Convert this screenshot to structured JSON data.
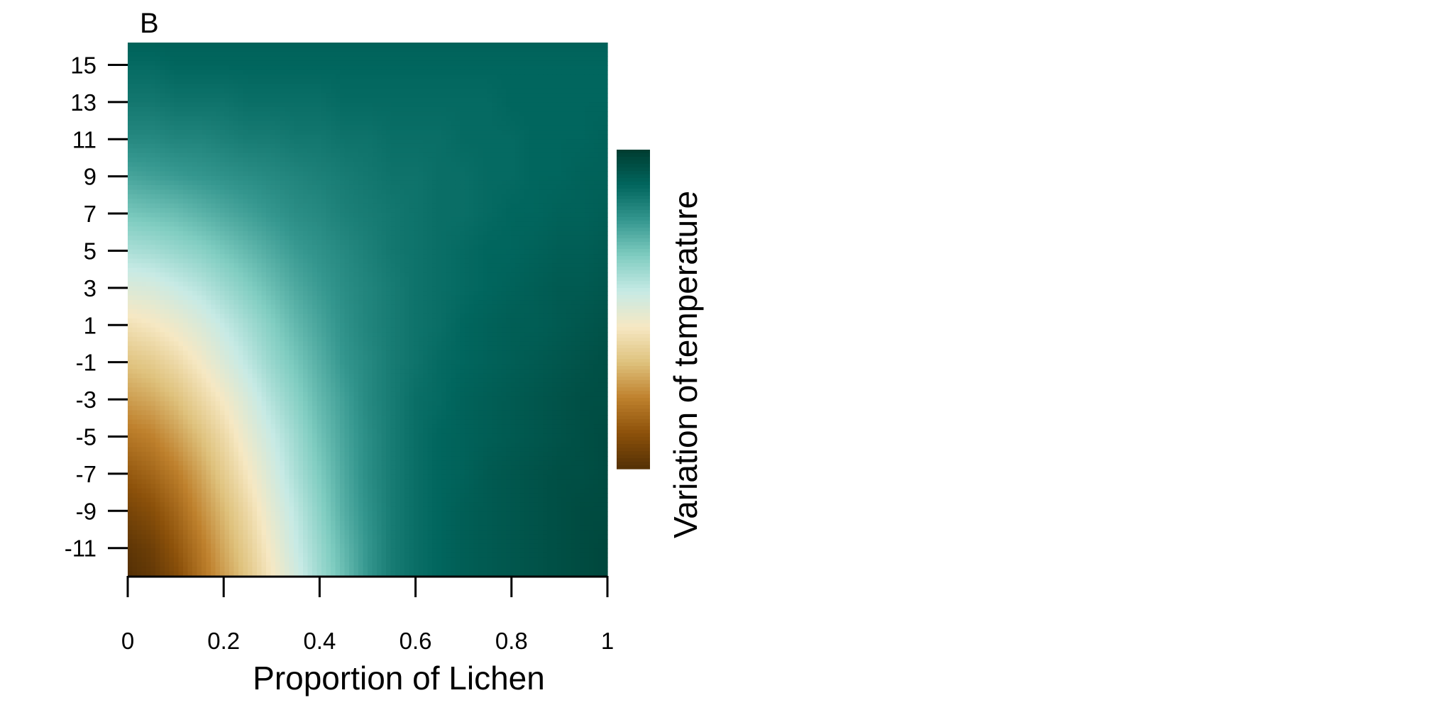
{
  "chart_data": {
    "type": "heatmap",
    "panel_label": "B",
    "title": "",
    "xlabel": "Proportion of Lichen",
    "ylabel": "",
    "colorbar_label": "Variation of temperature",
    "xlim": [
      0,
      1
    ],
    "ylim": [
      -12.5,
      16.2
    ],
    "x_ticks": [
      0,
      0.2,
      0.4,
      0.6,
      0.8,
      1
    ],
    "x_tick_labels": [
      "0",
      "0.2",
      "0.4",
      "0.6",
      "0.8",
      "1"
    ],
    "y_ticks": [
      -11,
      -9,
      -7,
      -5,
      -3,
      -1,
      1,
      3,
      5,
      7,
      9,
      11,
      13,
      15
    ],
    "y_tick_labels": [
      "-11",
      "-9",
      "-7",
      "-5",
      "-3",
      "-1",
      "1",
      "3",
      "5",
      "7",
      "9",
      "11",
      "13",
      "15"
    ],
    "colormap": [
      "#543005",
      "#8c510a",
      "#bf812d",
      "#dfc27d",
      "#f6e8c3",
      "#c7eae5",
      "#80cdc1",
      "#35978f",
      "#01665e",
      "#003c30"
    ],
    "colorbar_tick_labels": [],
    "x_grid": [
      0,
      0.05,
      0.1,
      0.15,
      0.2,
      0.25,
      0.3,
      0.35,
      0.4,
      0.45,
      0.5,
      0.55,
      0.6,
      0.65,
      0.7,
      0.75,
      0.8,
      0.85,
      0.9,
      0.95,
      1
    ],
    "y_grid": [
      -12.5,
      -11,
      -9,
      -7,
      -5,
      -3,
      -1,
      1,
      3,
      5,
      7,
      9,
      11,
      13,
      15,
      16.2
    ],
    "z_description": "relative shade 0 (dark brown) to 1 (dark teal)",
    "z": [
      [
        0.0,
        0.03,
        0.09,
        0.18,
        0.27,
        0.35,
        0.44,
        0.53,
        0.62,
        0.7,
        0.78,
        0.84,
        0.87,
        0.89,
        0.91,
        0.92,
        0.93,
        0.94,
        0.95,
        0.96,
        0.97
      ],
      [
        0.02,
        0.05,
        0.12,
        0.2,
        0.29,
        0.37,
        0.46,
        0.55,
        0.63,
        0.71,
        0.78,
        0.84,
        0.87,
        0.89,
        0.91,
        0.92,
        0.93,
        0.94,
        0.95,
        0.96,
        0.97
      ],
      [
        0.07,
        0.1,
        0.16,
        0.24,
        0.32,
        0.4,
        0.49,
        0.57,
        0.65,
        0.73,
        0.79,
        0.84,
        0.87,
        0.89,
        0.91,
        0.92,
        0.93,
        0.94,
        0.95,
        0.96,
        0.96
      ],
      [
        0.13,
        0.16,
        0.21,
        0.28,
        0.36,
        0.44,
        0.52,
        0.6,
        0.67,
        0.74,
        0.8,
        0.84,
        0.87,
        0.89,
        0.9,
        0.92,
        0.93,
        0.94,
        0.95,
        0.95,
        0.96
      ],
      [
        0.2,
        0.22,
        0.27,
        0.33,
        0.4,
        0.48,
        0.55,
        0.62,
        0.69,
        0.75,
        0.8,
        0.84,
        0.87,
        0.89,
        0.9,
        0.91,
        0.92,
        0.93,
        0.94,
        0.95,
        0.96
      ],
      [
        0.27,
        0.29,
        0.33,
        0.39,
        0.45,
        0.52,
        0.59,
        0.65,
        0.71,
        0.76,
        0.81,
        0.84,
        0.87,
        0.88,
        0.9,
        0.91,
        0.92,
        0.93,
        0.94,
        0.95,
        0.95
      ],
      [
        0.34,
        0.36,
        0.4,
        0.45,
        0.51,
        0.57,
        0.63,
        0.68,
        0.73,
        0.78,
        0.81,
        0.84,
        0.86,
        0.88,
        0.89,
        0.9,
        0.91,
        0.92,
        0.93,
        0.94,
        0.95
      ],
      [
        0.42,
        0.44,
        0.47,
        0.51,
        0.56,
        0.61,
        0.66,
        0.71,
        0.75,
        0.79,
        0.82,
        0.84,
        0.86,
        0.87,
        0.89,
        0.9,
        0.91,
        0.91,
        0.92,
        0.93,
        0.94
      ],
      [
        0.51,
        0.52,
        0.55,
        0.58,
        0.62,
        0.66,
        0.7,
        0.74,
        0.77,
        0.8,
        0.82,
        0.84,
        0.86,
        0.87,
        0.88,
        0.89,
        0.9,
        0.91,
        0.92,
        0.92,
        0.93
      ],
      [
        0.6,
        0.61,
        0.63,
        0.65,
        0.68,
        0.71,
        0.74,
        0.77,
        0.79,
        0.81,
        0.83,
        0.85,
        0.86,
        0.87,
        0.88,
        0.89,
        0.89,
        0.9,
        0.91,
        0.91,
        0.92
      ],
      [
        0.68,
        0.69,
        0.7,
        0.72,
        0.74,
        0.76,
        0.78,
        0.8,
        0.81,
        0.83,
        0.84,
        0.85,
        0.86,
        0.87,
        0.87,
        0.88,
        0.89,
        0.89,
        0.9,
        0.9,
        0.91
      ],
      [
        0.75,
        0.76,
        0.77,
        0.78,
        0.79,
        0.8,
        0.81,
        0.82,
        0.83,
        0.84,
        0.85,
        0.86,
        0.86,
        0.87,
        0.87,
        0.88,
        0.88,
        0.89,
        0.89,
        0.9,
        0.9
      ],
      [
        0.81,
        0.81,
        0.82,
        0.82,
        0.83,
        0.84,
        0.84,
        0.85,
        0.85,
        0.86,
        0.86,
        0.87,
        0.87,
        0.87,
        0.88,
        0.88,
        0.88,
        0.89,
        0.89,
        0.89,
        0.9
      ],
      [
        0.85,
        0.85,
        0.86,
        0.86,
        0.86,
        0.87,
        0.87,
        0.87,
        0.87,
        0.88,
        0.88,
        0.88,
        0.88,
        0.88,
        0.88,
        0.88,
        0.89,
        0.89,
        0.89,
        0.89,
        0.89
      ],
      [
        0.88,
        0.88,
        0.89,
        0.89,
        0.89,
        0.89,
        0.89,
        0.89,
        0.89,
        0.89,
        0.89,
        0.89,
        0.89,
        0.89,
        0.89,
        0.89,
        0.89,
        0.89,
        0.89,
        0.89,
        0.89
      ],
      [
        0.9,
        0.9,
        0.9,
        0.9,
        0.9,
        0.9,
        0.9,
        0.9,
        0.9,
        0.9,
        0.9,
        0.9,
        0.9,
        0.9,
        0.9,
        0.9,
        0.9,
        0.9,
        0.9,
        0.9,
        0.9
      ]
    ]
  }
}
